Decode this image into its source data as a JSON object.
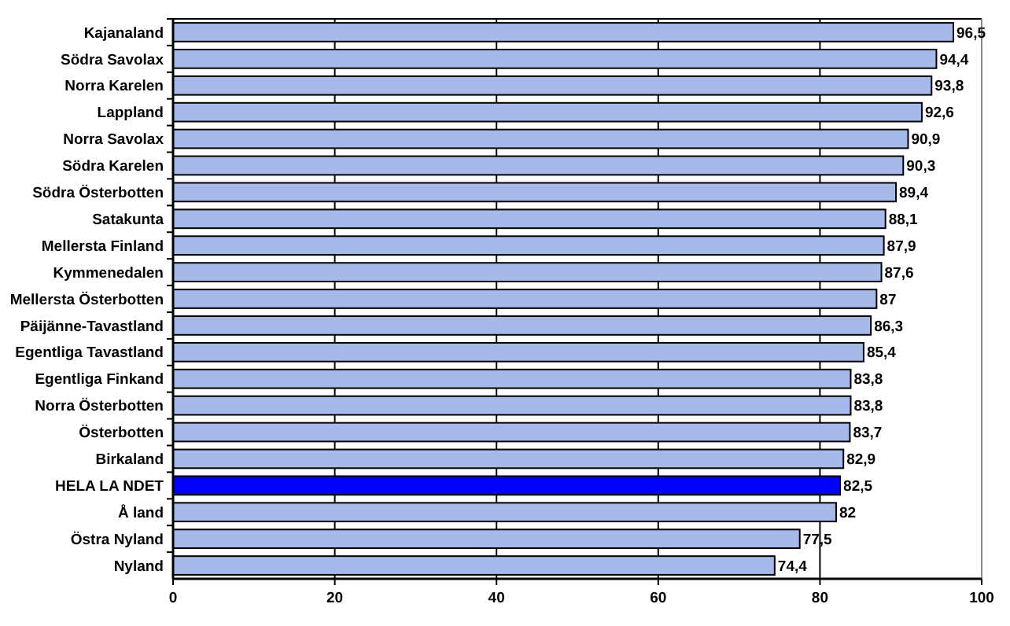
{
  "chart_data": {
    "type": "bar",
    "orientation": "horizontal",
    "categories": [
      "Kajanaland",
      "Södra Savolax",
      "Norra Karelen",
      "Lappland",
      "Norra Savolax",
      "Södra Karelen",
      "Södra Österbotten",
      "Satakunta",
      "Mellersta Finland",
      "Kymmenedalen",
      "Mellersta Österbotten",
      "Päijänne-Tavastland",
      "Egentliga Tavastland",
      "Egentliga Finkand",
      "Norra Österbotten",
      "Österbotten",
      "Birkaland",
      "HELA LA NDET",
      "Å land",
      "Östra Nyland",
      "Nyland"
    ],
    "values": [
      96.5,
      94.4,
      93.8,
      92.6,
      90.9,
      90.3,
      89.4,
      88.1,
      87.9,
      87.6,
      87,
      86.3,
      85.4,
      83.8,
      83.8,
      83.7,
      82.9,
      82.5,
      82,
      77.5,
      74.4
    ],
    "value_labels": [
      "96,5",
      "94,4",
      "93,8",
      "92,6",
      "90,9",
      "90,3",
      "89,4",
      "88,1",
      "87,9",
      "87,6",
      "87",
      "86,3",
      "85,4",
      "83,8",
      "83,8",
      "83,7",
      "82,9",
      "82,5",
      "82",
      "77,5",
      "74,4"
    ],
    "colors": [
      "#a6b9e8",
      "#a6b9e8",
      "#a6b9e8",
      "#a6b9e8",
      "#a6b9e8",
      "#a6b9e8",
      "#a6b9e8",
      "#a6b9e8",
      "#a6b9e8",
      "#a6b9e8",
      "#a6b9e8",
      "#a6b9e8",
      "#a6b9e8",
      "#a6b9e8",
      "#a6b9e8",
      "#a6b9e8",
      "#a6b9e8",
      "#0000ff",
      "#a6b9e8",
      "#a6b9e8",
      "#a6b9e8"
    ],
    "xlim": [
      0,
      100
    ],
    "xticks": [
      0,
      20,
      40,
      60,
      80,
      100
    ],
    "grid": "x"
  }
}
